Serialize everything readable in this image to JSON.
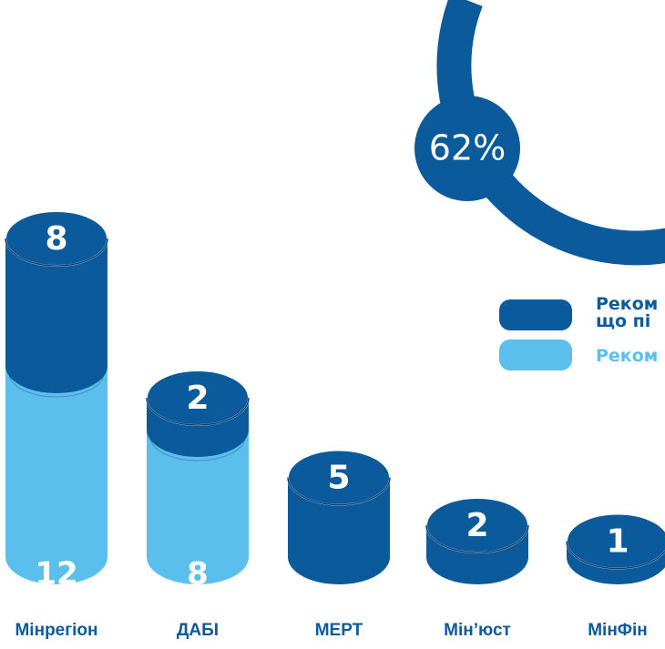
{
  "chart_data": {
    "type": "bar",
    "stacked": true,
    "categories": [
      "Мінрегіон",
      "ДАБІ",
      "МЕРТ",
      "Мін’юст",
      "МінФін"
    ],
    "series": [
      {
        "name": "Реком",
        "values": [
          12,
          8,
          0,
          0,
          0
        ],
        "color": "#5bbfee"
      },
      {
        "name": "Реком що пі",
        "values": [
          8,
          2,
          5,
          2,
          1
        ],
        "color": "#0b5a9c"
      }
    ],
    "bottom_labels": [
      "12",
      "8",
      "",
      "",
      ""
    ],
    "top_labels": [
      "8",
      "2",
      "5",
      "2",
      "1"
    ],
    "percent_label": "62%",
    "legend": [
      {
        "lines": [
          "Реком",
          "що пі"
        ],
        "color": "#0b5a9c",
        "text_color": "#0b5a9c"
      },
      {
        "lines": [
          "Реком"
        ],
        "color": "#5bbfee",
        "text_color": "#5bbfee"
      }
    ],
    "label_color": "#0b5a9c"
  }
}
